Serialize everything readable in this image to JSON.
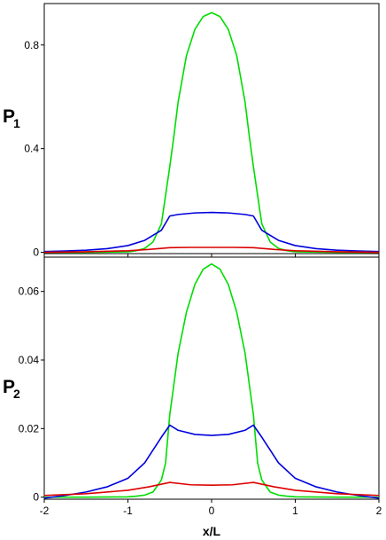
{
  "chart_data": [
    {
      "type": "line",
      "ylabel": {
        "main": "P",
        "sub": "1"
      },
      "xlabel": "",
      "xlim": [
        -2,
        2
      ],
      "ylim": [
        -0.005,
        0.96
      ],
      "yticks": [
        0,
        0.4,
        0.8
      ],
      "ytick_labels": [
        "0",
        "0.4",
        "0.8"
      ],
      "xticks": [
        -2,
        -1,
        0,
        1,
        2
      ],
      "xtick_labels": [],
      "grid": false,
      "series": [
        {
          "color": "#00dd00",
          "x": [
            -2.0,
            -1.5,
            -1.0,
            -0.9,
            -0.8,
            -0.7,
            -0.6,
            -0.5,
            -0.45,
            -0.4,
            -0.3,
            -0.2,
            -0.1,
            0.0,
            0.1,
            0.2,
            0.3,
            0.4,
            0.45,
            0.5,
            0.6,
            0.7,
            0.8,
            0.9,
            1.0,
            1.5,
            2.0
          ],
          "y": [
            0.0,
            0.0,
            0.002,
            0.006,
            0.015,
            0.04,
            0.11,
            0.33,
            0.45,
            0.58,
            0.76,
            0.86,
            0.91,
            0.925,
            0.91,
            0.86,
            0.76,
            0.58,
            0.45,
            0.33,
            0.11,
            0.04,
            0.015,
            0.006,
            0.002,
            0.0,
            0.0
          ]
        },
        {
          "color": "#0000dd",
          "x": [
            -2.0,
            -1.75,
            -1.5,
            -1.25,
            -1.0,
            -0.8,
            -0.6,
            -0.5,
            -0.4,
            -0.2,
            0.0,
            0.2,
            0.4,
            0.5,
            0.6,
            0.8,
            1.0,
            1.25,
            1.5,
            1.75,
            2.0
          ],
          "y": [
            0.003,
            0.005,
            0.008,
            0.014,
            0.026,
            0.046,
            0.085,
            0.14,
            0.146,
            0.152,
            0.154,
            0.152,
            0.146,
            0.14,
            0.085,
            0.046,
            0.026,
            0.014,
            0.008,
            0.005,
            0.003
          ]
        },
        {
          "color": "#dd0000",
          "x": [
            -2.0,
            -1.5,
            -1.0,
            -0.75,
            -0.5,
            -0.25,
            0.0,
            0.25,
            0.5,
            0.75,
            1.0,
            1.5,
            2.0
          ],
          "y": [
            0.0,
            0.002,
            0.006,
            0.011,
            0.018,
            0.019,
            0.019,
            0.019,
            0.018,
            0.011,
            0.006,
            0.002,
            0.0
          ]
        }
      ]
    },
    {
      "type": "line",
      "ylabel": {
        "main": "P",
        "sub": "2"
      },
      "xlabel": "x/L",
      "xlim": [
        -2,
        2
      ],
      "ylim": [
        -0.0006,
        0.07
      ],
      "yticks": [
        0,
        0.02,
        0.04,
        0.06
      ],
      "ytick_labels": [
        "0",
        "0.02",
        "0.04",
        "0.06"
      ],
      "xticks": [
        -2,
        -1,
        0,
        1,
        2
      ],
      "xtick_labels": [
        "-2",
        "-1",
        "0",
        "1",
        "2"
      ],
      "grid": false,
      "series": [
        {
          "color": "#00dd00",
          "x": [
            -2.0,
            -1.5,
            -1.0,
            -0.9,
            -0.8,
            -0.7,
            -0.6,
            -0.55,
            -0.5,
            -0.45,
            -0.4,
            -0.3,
            -0.2,
            -0.1,
            0.0,
            0.1,
            0.2,
            0.3,
            0.4,
            0.45,
            0.5,
            0.55,
            0.6,
            0.7,
            0.8,
            0.9,
            1.0,
            1.5,
            2.0
          ],
          "y": [
            0.0,
            0.0,
            0.0001,
            0.0003,
            0.0006,
            0.0015,
            0.005,
            0.01,
            0.024,
            0.033,
            0.042,
            0.054,
            0.062,
            0.0665,
            0.068,
            0.0665,
            0.062,
            0.054,
            0.042,
            0.033,
            0.024,
            0.01,
            0.005,
            0.0015,
            0.0006,
            0.0003,
            0.0001,
            0.0,
            0.0
          ]
        },
        {
          "color": "#0000dd",
          "x": [
            -2.0,
            -1.75,
            -1.5,
            -1.25,
            -1.0,
            -0.8,
            -0.6,
            -0.5,
            -0.4,
            -0.2,
            0.0,
            0.2,
            0.4,
            0.5,
            0.6,
            0.8,
            1.0,
            1.25,
            1.5,
            1.75,
            2.0
          ],
          "y": [
            -0.0003,
            0.0005,
            0.0015,
            0.003,
            0.0055,
            0.01,
            0.0175,
            0.021,
            0.0195,
            0.0183,
            0.018,
            0.0183,
            0.0195,
            0.021,
            0.0175,
            0.01,
            0.0055,
            0.003,
            0.0015,
            0.0005,
            -0.0003
          ]
        },
        {
          "color": "#dd0000",
          "x": [
            -2.0,
            -1.5,
            -1.0,
            -0.75,
            -0.5,
            -0.25,
            0.0,
            0.25,
            0.5,
            0.75,
            1.0,
            1.5,
            2.0
          ],
          "y": [
            0.0005,
            0.001,
            0.002,
            0.003,
            0.0043,
            0.0036,
            0.0035,
            0.0036,
            0.0043,
            0.003,
            0.002,
            0.001,
            0.0005
          ]
        }
      ]
    }
  ]
}
